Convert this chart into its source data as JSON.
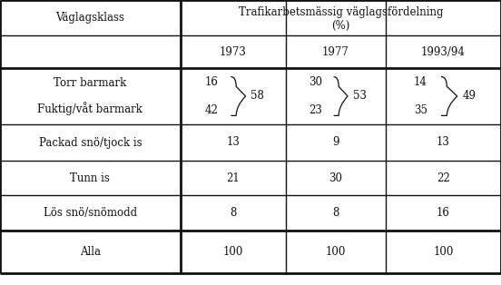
{
  "title_col1": "Väglagsklass",
  "title_col2_line1": "Trafikarbetsmässig väglagsfördelning",
  "title_col2_line2": "(%)",
  "year_headers": [
    "1973",
    "1977",
    "1993/94"
  ],
  "row1_labels": [
    "Torr barmark",
    "Fuktig/våt barmark"
  ],
  "row_labels": [
    "Packad snö/tjock is",
    "Tunn is",
    "Lös snö/snömodd",
    "Alla"
  ],
  "data_1973_row1": [
    "16",
    "42"
  ],
  "data_1977_row1": [
    "30",
    "23"
  ],
  "data_1993_row1": [
    "14",
    "35"
  ],
  "brace_1973": "58",
  "brace_1977": "53",
  "brace_1993": "49",
  "data_1973": [
    "13",
    "21",
    "8",
    "100"
  ],
  "data_1977": [
    "9",
    "30",
    "8",
    "100"
  ],
  "data_1993": [
    "13",
    "22",
    "16",
    "100"
  ],
  "bg_color": "#ffffff",
  "line_color": "#111111",
  "text_color": "#111111",
  "font_size": 8.5,
  "c0l": 0.0,
  "c0r": 0.36,
  "c1l": 0.36,
  "c1r": 0.57,
  "c2l": 0.57,
  "c2r": 0.77,
  "c3l": 0.77,
  "c3r": 1.0,
  "rows": [
    1.0,
    0.875,
    0.76,
    0.565,
    0.435,
    0.315,
    0.19,
    0.04
  ]
}
